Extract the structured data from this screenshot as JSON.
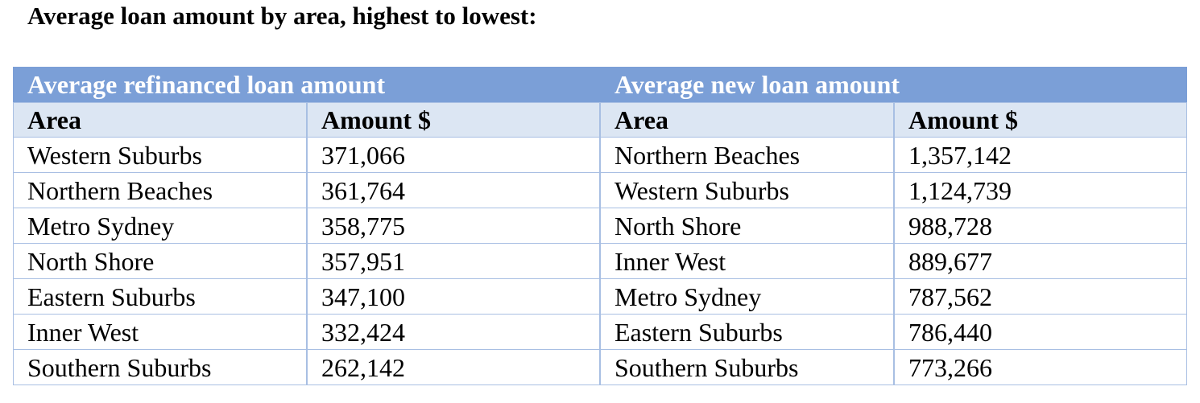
{
  "title": "Average loan amount by area, highest to lowest:",
  "tables": [
    {
      "title": "Average refinanced loan amount",
      "headers": [
        "Area",
        "Amount $"
      ],
      "rows": [
        [
          "Western Suburbs",
          "371,066"
        ],
        [
          "Northern Beaches",
          "361,764"
        ],
        [
          "Metro Sydney",
          "358,775"
        ],
        [
          "North Shore",
          "357,951"
        ],
        [
          "Eastern Suburbs",
          "347,100"
        ],
        [
          "Inner West",
          "332,424"
        ],
        [
          "Southern Suburbs",
          "262,142"
        ]
      ]
    },
    {
      "title": "Average new loan amount",
      "headers": [
        "Area",
        "Amount $"
      ],
      "rows": [
        [
          "Northern Beaches",
          "1,357,142"
        ],
        [
          "Western Suburbs",
          "1,124,739"
        ],
        [
          "North Shore",
          "988,728"
        ],
        [
          "Inner West",
          "889,677"
        ],
        [
          "Metro Sydney",
          "787,562"
        ],
        [
          "Eastern Suburbs",
          "786,440"
        ],
        [
          "Southern Suburbs",
          "773,266"
        ]
      ]
    }
  ]
}
